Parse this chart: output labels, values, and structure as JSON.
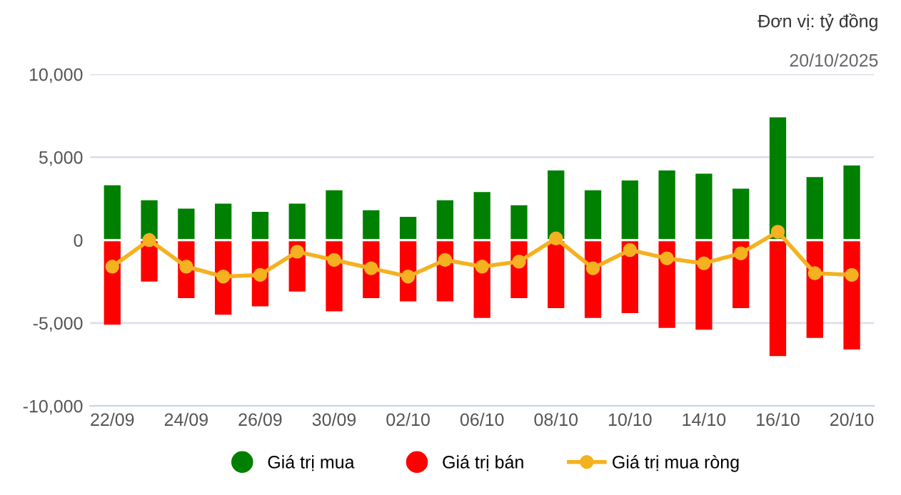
{
  "chart_data": {
    "type": "bar",
    "title": "Đơn vị: tỷ đồng",
    "subtitle": "20/10/2025",
    "stacked": true,
    "categories": [
      "22/09",
      null,
      "24/09",
      null,
      "26/09",
      null,
      "30/09",
      null,
      "02/10",
      null,
      "06/10",
      null,
      "08/10",
      null,
      "10/10",
      null,
      "14/10",
      null,
      "16/10",
      null,
      "20/10"
    ],
    "series": [
      {
        "name": "Giá trị mua",
        "color": "#008000",
        "values": [
          3300,
          2400,
          1900,
          2200,
          1700,
          2200,
          3000,
          1800,
          1400,
          2400,
          2900,
          2100,
          4200,
          3000,
          3600,
          4200,
          4000,
          3100,
          7400,
          3800,
          4500
        ]
      },
      {
        "name": "Giá trị bán",
        "color": "#ff0000",
        "values": [
          -5100,
          -2500,
          -3500,
          -4500,
          -4000,
          -3100,
          -4300,
          -3500,
          -3700,
          -3700,
          -4700,
          -3500,
          -4100,
          -4700,
          -4400,
          -5300,
          -5400,
          -4100,
          -7000,
          -5900,
          -6600
        ]
      },
      {
        "name": "Giá trị mua ròng",
        "type": "line",
        "color": "#f4b120",
        "marker": "circle",
        "values": [
          -1600,
          0,
          -1600,
          -2200,
          -2100,
          -700,
          -1200,
          -1700,
          -2200,
          -1200,
          -1600,
          -1300,
          100,
          -1700,
          -600,
          -1100,
          -1400,
          -800,
          500,
          -2000,
          -2100
        ]
      }
    ],
    "ylim": [
      -10000,
      10000
    ],
    "yticks": [
      {
        "value": -10000,
        "label": "-10,000"
      },
      {
        "value": -5000,
        "label": "-5,000"
      },
      0,
      {
        "value": 5000,
        "label": "5,000"
      },
      {
        "value": 10000,
        "label": "10,000"
      }
    ],
    "grid": "y",
    "legend": "bottom"
  }
}
